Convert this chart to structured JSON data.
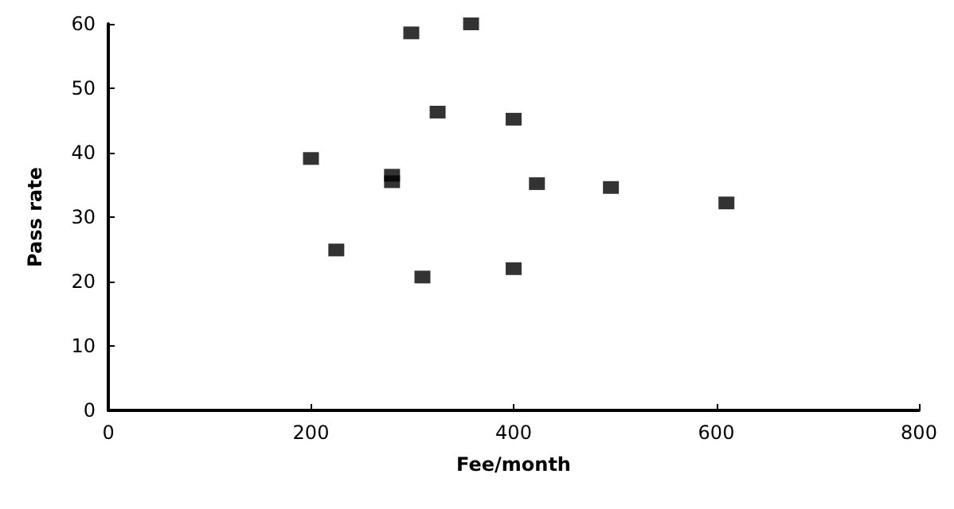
{
  "chart_data": {
    "type": "scatter",
    "xlabel": "Fee/month",
    "ylabel": "Pass rate",
    "x": [
      200,
      225,
      280,
      280,
      299,
      310,
      325,
      358,
      400,
      400,
      423,
      496,
      610
    ],
    "values": [
      39.1,
      24.9,
      36.5,
      35.5,
      58.6,
      20.7,
      46.3,
      60,
      45.2,
      22,
      35.2,
      34.6,
      32.2
    ],
    "color": "#000000",
    "marker": "square",
    "xlim": [
      0,
      800
    ],
    "xticks": [
      0,
      200,
      400,
      600,
      800
    ],
    "ylim": [
      0,
      60
    ],
    "yticks": [
      0,
      10,
      20,
      30,
      40,
      50,
      60
    ],
    "grid": false
  }
}
